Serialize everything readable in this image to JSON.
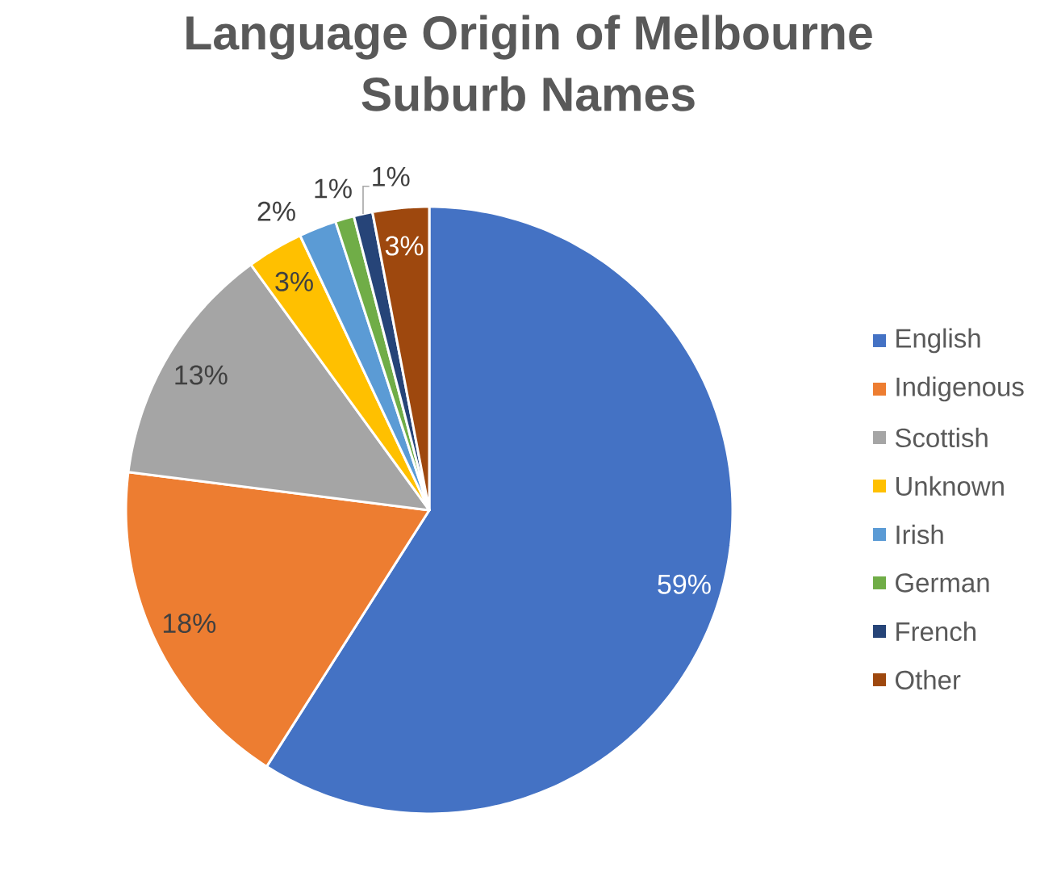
{
  "chart_data": {
    "type": "pie",
    "title": "Language Origin of Melbourne Suburb Names",
    "categories": [
      "English",
      "Indigenous",
      "Scottish",
      "Unknown",
      "Irish",
      "German",
      "French",
      "Other"
    ],
    "values": [
      59,
      18,
      13,
      3,
      2,
      1,
      1,
      3
    ],
    "colors": [
      "#4472c4",
      "#ed7d31",
      "#a5a5a5",
      "#ffc000",
      "#5b9bd5",
      "#70ad47",
      "#264478",
      "#9e480e"
    ],
    "value_labels": [
      "59%",
      "18%",
      "13%",
      "3%",
      "2%",
      "1%",
      "1%",
      "3%"
    ],
    "legend": "right"
  }
}
